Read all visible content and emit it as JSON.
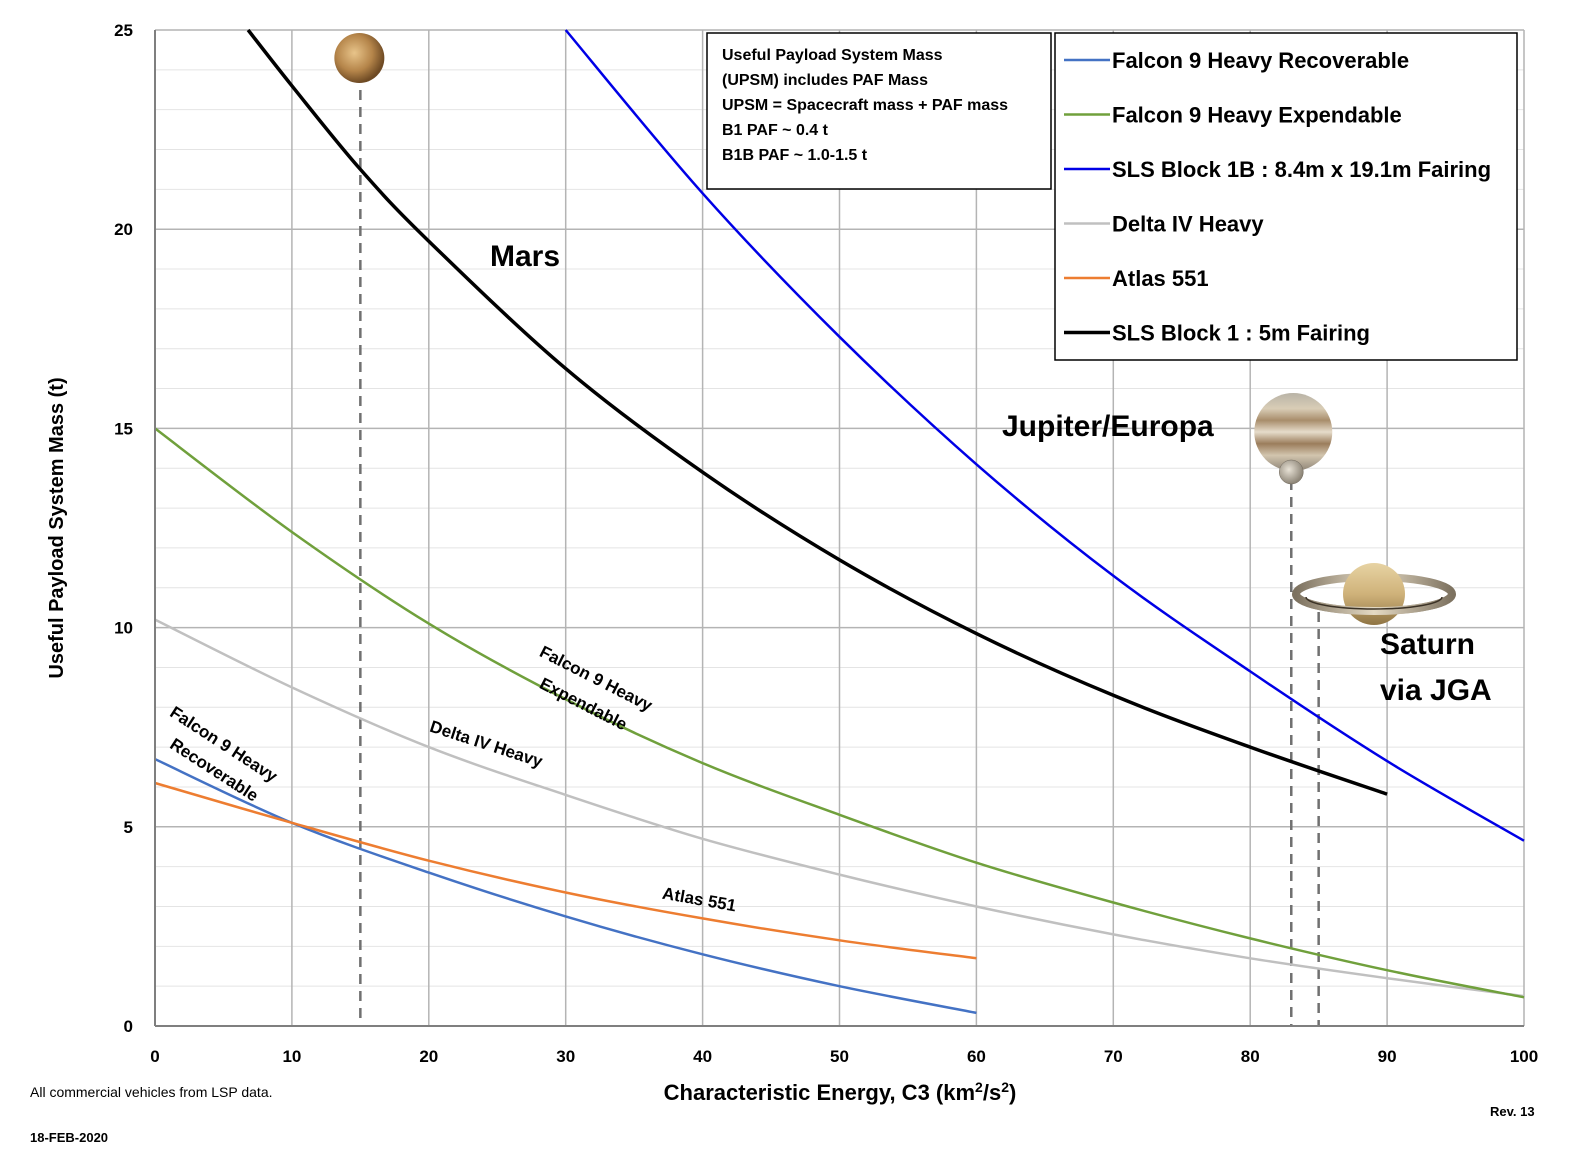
{
  "chart_data": {
    "type": "line",
    "title": "",
    "xlabel": "Characteristic Energy, C3 (km²/s²)",
    "xlabel_parts": {
      "main": "Characteristic Energy, C3 (km",
      "sup1": "2",
      "mid": "/s",
      "sup2": "2",
      "end": ")"
    },
    "ylabel": "Useful Payload System Mass (t)",
    "xlim": [
      0,
      100
    ],
    "ylim": [
      0,
      25
    ],
    "x_ticks": [
      0,
      10,
      20,
      30,
      40,
      50,
      60,
      70,
      80,
      90,
      100
    ],
    "y_ticks": [
      0,
      5,
      10,
      15,
      20,
      25
    ],
    "grid": true,
    "legend_position": "top-right",
    "series": [
      {
        "name": "Falcon 9 Heavy Recoverable",
        "color": "#4472c4",
        "points": [
          [
            0,
            6.7
          ],
          [
            10,
            5.1
          ],
          [
            20,
            3.85
          ],
          [
            30,
            2.75
          ],
          [
            40,
            1.8
          ],
          [
            50,
            1.0
          ],
          [
            60,
            0.33
          ]
        ]
      },
      {
        "name": "Falcon 9 Heavy Expendable",
        "color": "#70a03c",
        "points": [
          [
            0,
            15.0
          ],
          [
            10,
            12.4
          ],
          [
            20,
            10.1
          ],
          [
            30,
            8.2
          ],
          [
            40,
            6.6
          ],
          [
            50,
            5.3
          ],
          [
            60,
            4.1
          ],
          [
            70,
            3.1
          ],
          [
            80,
            2.2
          ],
          [
            90,
            1.4
          ],
          [
            100,
            0.72
          ]
        ]
      },
      {
        "name": "SLS Block 1B : 8.4m x 19.1m Fairing",
        "color": "#0000e6",
        "points": [
          [
            30,
            25.0
          ],
          [
            40,
            20.9
          ],
          [
            50,
            17.3
          ],
          [
            60,
            14.1
          ],
          [
            70,
            11.3
          ],
          [
            80,
            8.9
          ],
          [
            90,
            6.65
          ],
          [
            100,
            4.65
          ]
        ]
      },
      {
        "name": "Delta IV Heavy",
        "color": "#c0c0c0",
        "points": [
          [
            0,
            10.2
          ],
          [
            10,
            8.5
          ],
          [
            20,
            7.0
          ],
          [
            30,
            5.8
          ],
          [
            40,
            4.7
          ],
          [
            50,
            3.8
          ],
          [
            60,
            3.0
          ],
          [
            70,
            2.3
          ],
          [
            80,
            1.7
          ],
          [
            90,
            1.2
          ],
          [
            100,
            0.75
          ]
        ]
      },
      {
        "name": "Atlas 551",
        "color": "#ed7d31",
        "points": [
          [
            0,
            6.1
          ],
          [
            10,
            5.1
          ],
          [
            20,
            4.15
          ],
          [
            30,
            3.35
          ],
          [
            40,
            2.7
          ],
          [
            50,
            2.15
          ],
          [
            60,
            1.7
          ]
        ]
      },
      {
        "name": "SLS Block 1 : 5m Fairing",
        "color": "#000000",
        "points": [
          [
            6.8,
            25.0
          ],
          [
            10,
            23.6
          ],
          [
            15,
            21.5
          ],
          [
            20,
            19.7
          ],
          [
            30,
            16.5
          ],
          [
            40,
            13.9
          ],
          [
            50,
            11.7
          ],
          [
            60,
            9.85
          ],
          [
            70,
            8.3
          ],
          [
            80,
            7.0
          ],
          [
            90,
            5.82
          ]
        ]
      }
    ],
    "curve_labels": [
      {
        "text": "Falcon 9 Heavy",
        "x": 1,
        "y": 7.8,
        "angle": 33
      },
      {
        "text": "Recoverable",
        "x": 1,
        "y": 7.0,
        "angle": 33
      },
      {
        "text": "Falcon 9 Heavy",
        "x": 28,
        "y": 9.3,
        "angle": 27
      },
      {
        "text": "Expendable",
        "x": 28,
        "y": 8.5,
        "angle": 27
      },
      {
        "text": "Delta IV Heavy",
        "x": 20,
        "y": 7.4,
        "angle": 18
      },
      {
        "text": "Atlas 551",
        "x": 37,
        "y": 3.2,
        "angle": 10
      }
    ],
    "target_lines": [
      {
        "name": "Mars",
        "c3": 15,
        "label": "Mars",
        "planet": "mars-icon"
      },
      {
        "name": "Jupiter",
        "c3": 83,
        "label": "Jupiter/Europa",
        "planet": "jupiter-icon"
      },
      {
        "name": "Saturn",
        "c3": 85,
        "label_lines": [
          "Saturn",
          "via JGA"
        ],
        "planet": "saturn-icon"
      }
    ],
    "note_box": {
      "lines": [
        "Useful Payload System Mass",
        "(UPSM) includes PAF Mass",
        "UPSM = Spacecraft mass + PAF mass",
        "B1 PAF ~ 0.4 t",
        "B1B PAF ~ 1.0-1.5 t"
      ]
    }
  },
  "footer": {
    "source_note": "All commercial vehicles from LSP data.",
    "date": "18-FEB-2020",
    "revision": "Rev. 13"
  }
}
